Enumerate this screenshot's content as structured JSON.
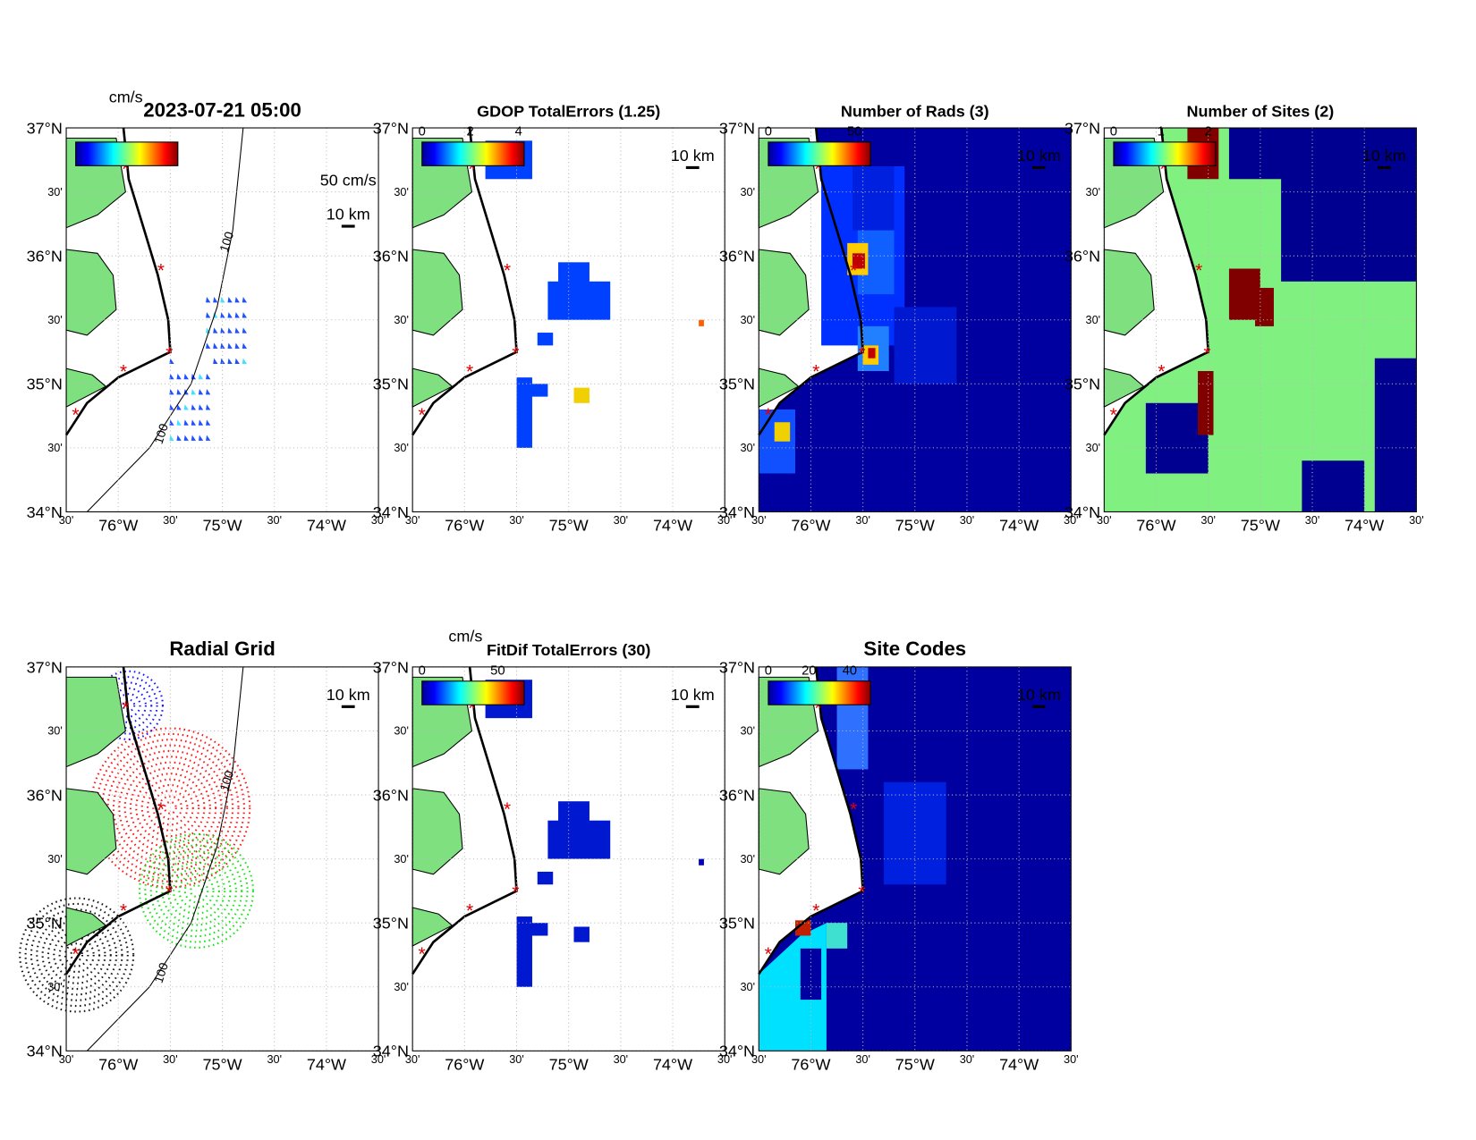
{
  "axes": {
    "lat_labels": [
      "37°N",
      "30'",
      "36°N",
      "30'",
      "35°N",
      "30'",
      "34°N"
    ],
    "lon_labels": [
      "30'",
      "76°W",
      "30'",
      "75°W",
      "30'",
      "74°W",
      "30'"
    ]
  },
  "panels": [
    {
      "title": "2023-07-21 05:00",
      "colorbar": {
        "unit": "cm/s",
        "ticks": []
      },
      "vector_scale": "50 cm/s",
      "scale_label": "10 km",
      "contour_labels": [
        "100",
        "100"
      ]
    },
    {
      "title": "GDOP TotalErrors (1.25)",
      "colorbar": {
        "ticks": [
          "0",
          "2",
          "4"
        ]
      },
      "scale_label": "10 km"
    },
    {
      "title": "Number of Rads (3)",
      "colorbar": {
        "ticks": [
          "0",
          "50"
        ]
      },
      "scale_label": "10 km"
    },
    {
      "title": "Number of Sites (2)",
      "colorbar": {
        "ticks": [
          "0",
          "1",
          "2"
        ]
      },
      "scale_label": "10 km"
    },
    {
      "title": "Radial Grid",
      "scale_label": "10 km",
      "contour_labels": [
        "100",
        "100"
      ]
    },
    {
      "title": "FitDif TotalErrors (30)",
      "colorbar": {
        "unit": "cm/s",
        "ticks": [
          "0",
          "50"
        ]
      },
      "scale_label": "10 km"
    },
    {
      "title": "Site Codes",
      "colorbar": {
        "ticks": [
          "0",
          "20",
          "40"
        ]
      },
      "scale_label": "10 km"
    }
  ]
}
